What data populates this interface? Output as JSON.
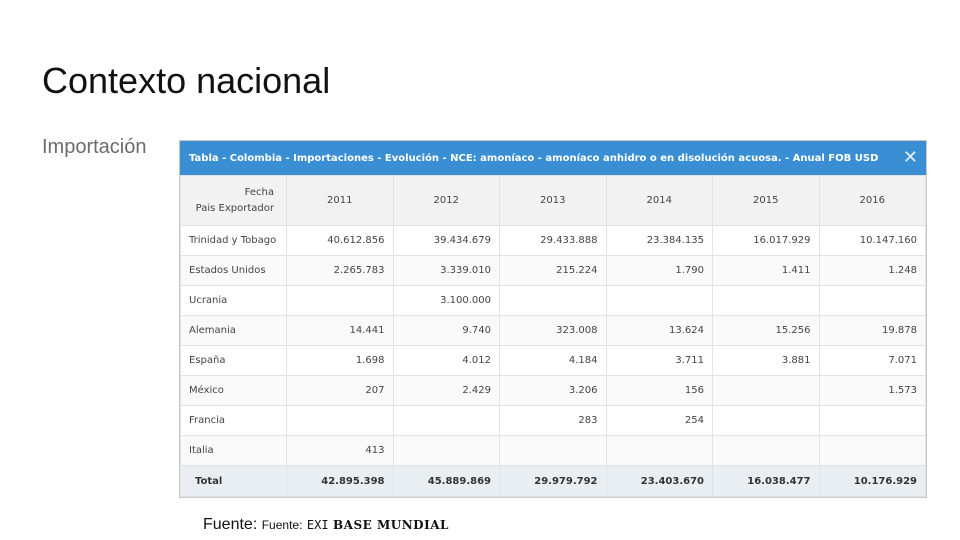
{
  "slide": {
    "title": "Contexto nacional",
    "subtitle": "Importación"
  },
  "panel": {
    "header": "Tabla - Colombia - Importaciones - Evolución - NCE: amoníaco - amoníaco anhidro o en disolución acuosa. - Anual FOB USD",
    "close_icon": "close-icon",
    "accent_color": "#3a8fd4"
  },
  "table": {
    "corner_top": "Fecha",
    "corner_bottom": "Pais Exportador",
    "years": [
      "2011",
      "2012",
      "2013",
      "2014",
      "2015",
      "2016"
    ],
    "rows": [
      {
        "country": "Trinidad y Tobago",
        "values": [
          "40.612.856",
          "39.434.679",
          "29.433.888",
          "23.384.135",
          "16.017.929",
          "10.147.160"
        ]
      },
      {
        "country": "Estados Unidos",
        "values": [
          "2.265.783",
          "3.339.010",
          "215.224",
          "1.790",
          "1.411",
          "1.248"
        ]
      },
      {
        "country": "Ucrania",
        "values": [
          "",
          "3.100.000",
          "",
          "",
          "",
          ""
        ]
      },
      {
        "country": "Alemania",
        "values": [
          "14.441",
          "9.740",
          "323.008",
          "13.624",
          "15.256",
          "19.878"
        ]
      },
      {
        "country": "España",
        "values": [
          "1.698",
          "4.012",
          "4.184",
          "3.711",
          "3.881",
          "7.071"
        ]
      },
      {
        "country": "México",
        "values": [
          "207",
          "2.429",
          "3.206",
          "156",
          "",
          "1.573"
        ]
      },
      {
        "country": "Francia",
        "values": [
          "",
          "",
          "283",
          "254",
          "",
          ""
        ]
      },
      {
        "country": "Italia",
        "values": [
          "413",
          "",
          "",
          "",
          "",
          ""
        ]
      }
    ],
    "total": {
      "label": "Total",
      "values": [
        "42.895.398",
        "45.889.869",
        "29.979.792",
        "23.403.670",
        "16.038.477",
        "10.176.929"
      ]
    }
  },
  "source": {
    "label": "Fuente:",
    "label2": "Fuente:",
    "prefix": "EXI",
    "name": "BASE MUNDIAL"
  }
}
